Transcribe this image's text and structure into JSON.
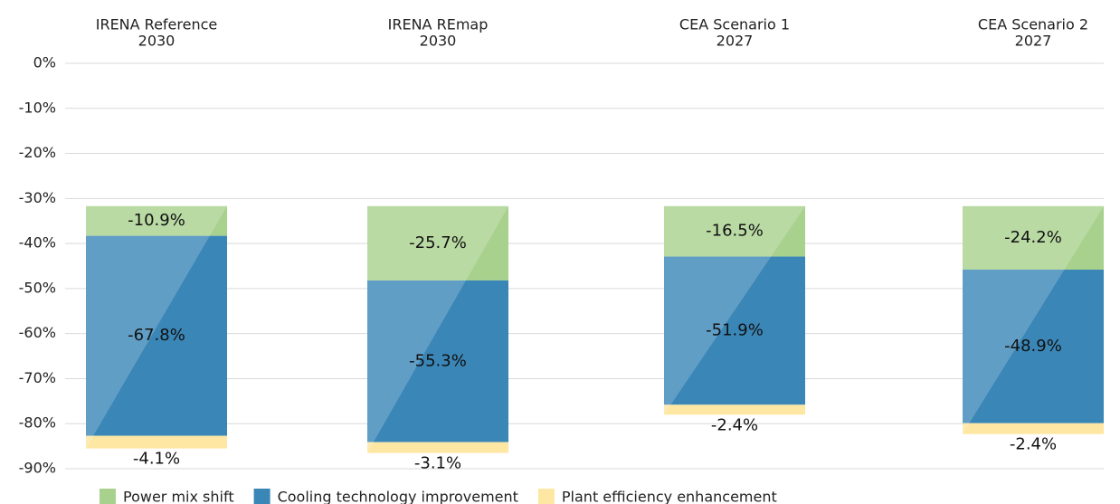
{
  "chart_data": {
    "type": "stacked_bar",
    "categories": [
      [
        "IRENA Reference",
        "2030"
      ],
      [
        "IRENA REmap",
        "2030"
      ],
      [
        "CEA Scenario 1",
        "2027"
      ],
      [
        "CEA Scenario 2",
        "2027"
      ]
    ],
    "base": [
      -31.7,
      -31.7,
      -31.7,
      -31.7
    ],
    "series": [
      {
        "name": "Power mix shift",
        "color": "#a9d18e",
        "values": [
          -6.6,
          -16.5,
          -11.2,
          -14.1
        ],
        "labels": [
          "-10.9%",
          "-25.7%",
          "-16.5%",
          "-24.2%"
        ]
      },
      {
        "name": "Cooling technology improvement",
        "color": "#3a86b7",
        "values": [
          -44.4,
          -35.9,
          -32.9,
          -34.1
        ],
        "labels": [
          "-67.8%",
          "-55.3%",
          "-51.9%",
          "-48.9%"
        ]
      },
      {
        "name": "Plant efficiency enhancement",
        "color": "#fde7a3",
        "values": [
          -2.8,
          -2.4,
          -2.2,
          -2.4
        ],
        "labels": [
          "-4.1%",
          "-3.1%",
          "-2.4%",
          "-2.4%"
        ]
      }
    ],
    "ylim": [
      -90,
      0
    ],
    "yticks": [
      {
        "value": 0,
        "label": "0%"
      },
      {
        "value": -10,
        "label": "-10%"
      },
      {
        "value": -20,
        "label": "-20%"
      },
      {
        "value": -30,
        "label": "-30%"
      },
      {
        "value": -40,
        "label": "-40%"
      },
      {
        "value": -50,
        "label": "-50%"
      },
      {
        "value": -60,
        "label": "-60%"
      },
      {
        "value": -70,
        "label": "-70%"
      },
      {
        "value": -80,
        "label": "-80%"
      },
      {
        "value": -90,
        "label": "-90%"
      }
    ],
    "grid": true
  }
}
